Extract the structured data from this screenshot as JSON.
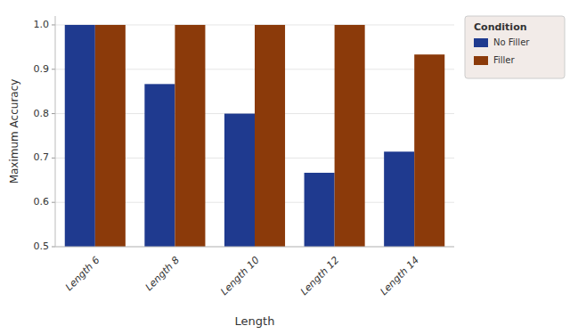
{
  "chart_data": {
    "type": "bar",
    "xlabel": "Length",
    "ylabel": "Maximum Accuracy",
    "categories": [
      "Length 6",
      "Length 8",
      "Length 10",
      "Length 12",
      "Length 14"
    ],
    "series": [
      {
        "name": "No Filler",
        "color": "#1f3a8f",
        "values": [
          1.0,
          0.8667,
          0.8,
          0.6667,
          0.7143
        ]
      },
      {
        "name": "Filler",
        "color": "#8b3a0a",
        "values": [
          1.0,
          1.0,
          1.0,
          1.0,
          0.9333
        ]
      }
    ],
    "ylim": [
      0.5,
      1.02
    ],
    "yticks": [
      0.5,
      0.6,
      0.7,
      0.8,
      0.9,
      {
        "value": 1.0,
        "label": "1.0"
      }
    ],
    "grid": true,
    "legend": "upper-right",
    "legend_title": "Condition"
  }
}
